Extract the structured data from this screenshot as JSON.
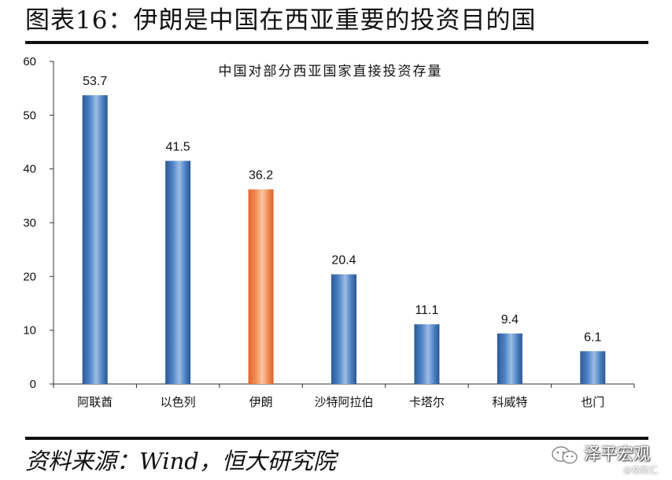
{
  "figure": {
    "title": "图表16：伊朗是中国在西亚重要的投资目的国",
    "source": "资料来源：Wind，恒大研究院"
  },
  "watermark": {
    "name": "泽平宏观",
    "sub": "@格隆汇",
    "icon": "wechat-icon"
  },
  "colors": {
    "bar": "#3e72b6",
    "bar_highlight": "#ee7f45"
  },
  "chart_data": {
    "type": "bar",
    "title": "中国对部分西亚国家直接投资存量",
    "categories": [
      "阿联酋",
      "以色列",
      "伊朗",
      "沙特阿拉伯",
      "卡塔尔",
      "科威特",
      "也门"
    ],
    "values": [
      53.7,
      41.5,
      36.2,
      20.4,
      11.1,
      9.4,
      6.1
    ],
    "data_labels": [
      "53.7",
      "41.5",
      "36.2",
      "20.4",
      "11.1",
      "9.4",
      "6.1"
    ],
    "highlight_index": 2,
    "ylim": [
      0,
      60
    ],
    "yticks": [
      "0",
      "10",
      "20",
      "30",
      "40",
      "50",
      "60"
    ],
    "xlabel": "",
    "ylabel": "",
    "grid": false,
    "legend": "none"
  }
}
